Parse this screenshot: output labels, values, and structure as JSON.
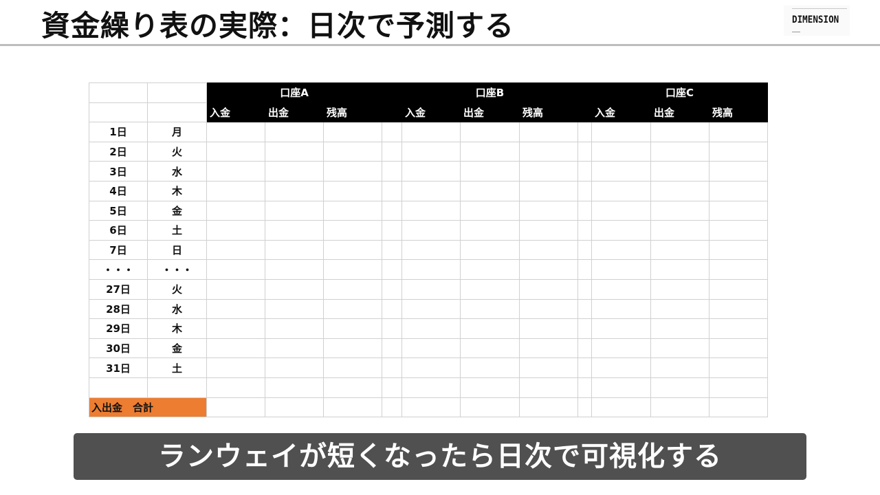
{
  "title": "資金繰り表の実際：日次で予測する",
  "logo_text": "DIMENSION",
  "table": {
    "accounts": [
      "口座A",
      "口座B",
      "口座C"
    ],
    "subheaders": [
      "入金",
      "出金",
      "残高"
    ],
    "rows": [
      {
        "day": "1日",
        "weekday": "月"
      },
      {
        "day": "2日",
        "weekday": "火"
      },
      {
        "day": "3日",
        "weekday": "水"
      },
      {
        "day": "4日",
        "weekday": "木"
      },
      {
        "day": "5日",
        "weekday": "金"
      },
      {
        "day": "6日",
        "weekday": "土"
      },
      {
        "day": "7日",
        "weekday": "日"
      },
      {
        "day": "・・・",
        "weekday": "・・・"
      },
      {
        "day": "27日",
        "weekday": "火"
      },
      {
        "day": "28日",
        "weekday": "水"
      },
      {
        "day": "29日",
        "weekday": "木"
      },
      {
        "day": "30日",
        "weekday": "金"
      },
      {
        "day": "31日",
        "weekday": "土"
      },
      {
        "day": "",
        "weekday": ""
      }
    ],
    "total_label": "入出金　合計"
  },
  "banner": "ランウェイが短くなったら日次で可視化する",
  "colors": {
    "header_bg": "#000000",
    "total_label_bg": "#ed7d31",
    "banner_bg": "#505050",
    "title_rule": "#bdbdbd"
  }
}
